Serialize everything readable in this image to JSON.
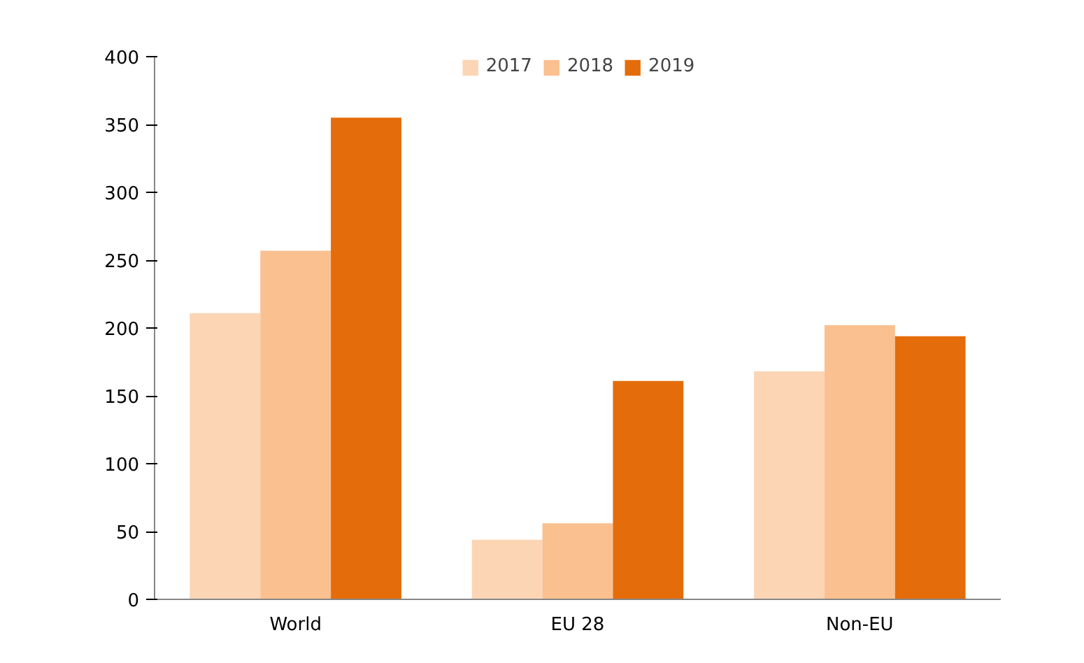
{
  "chart_data": {
    "type": "bar",
    "categories": [
      "World",
      "EU 28",
      "Non-EU"
    ],
    "series": [
      {
        "name": "2017",
        "color": "#fcd5b5",
        "values": [
          211,
          44,
          168
        ]
      },
      {
        "name": "2018",
        "color": "#fac090",
        "values": [
          257,
          56,
          202
        ]
      },
      {
        "name": "2019",
        "color": "#e46c0a",
        "values": [
          355,
          161,
          194
        ]
      }
    ],
    "ylim": [
      0,
      400
    ],
    "yticks": [
      0,
      50,
      100,
      150,
      200,
      250,
      300,
      350,
      400
    ],
    "grid": false,
    "legend": "top"
  }
}
